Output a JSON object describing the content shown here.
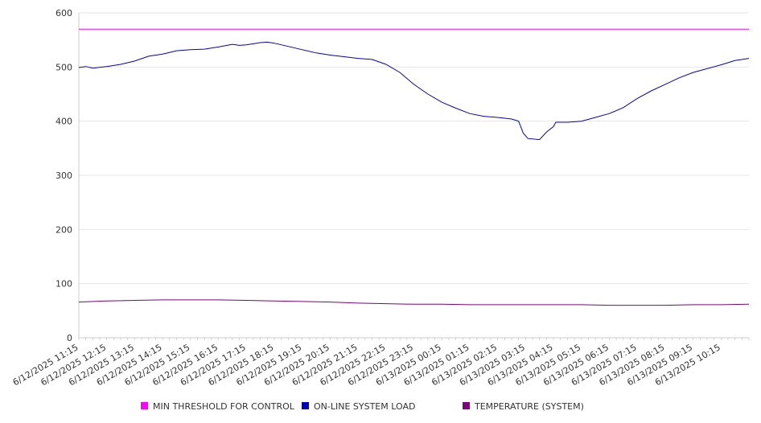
{
  "chart_data": {
    "type": "line",
    "title": "",
    "xlabel": "",
    "ylabel": "",
    "ylim": [
      0,
      600
    ],
    "yticks": [
      0,
      100,
      200,
      300,
      400,
      500,
      600
    ],
    "x_tick_labels": [
      "6/12/2025 11:15",
      "6/12/2025 12:15",
      "6/12/2025 13:15",
      "6/12/2025 14:15",
      "6/12/2025 15:15",
      "6/12/2025 16:15",
      "6/12/2025 17:15",
      "6/12/2025 18:15",
      "6/12/2025 19:15",
      "6/12/2025 20:15",
      "6/12/2025 21:15",
      "6/12/2025 22:15",
      "6/12/2025 23:15",
      "6/13/2025 00:15",
      "6/13/2025 01:15",
      "6/13/2025 02:15",
      "6/13/2025 03:15",
      "6/13/2025 04:15",
      "6/13/2025 05:15",
      "6/13/2025 06:15",
      "6/13/2025 07:15",
      "6/13/2025 08:15",
      "6/13/2025 09:15",
      "6/13/2025 10:15"
    ],
    "x_range": [
      "6/12/2025 11:15",
      "6/13/2025 11:15"
    ],
    "grid": true,
    "legend_position": "bottom",
    "series": [
      {
        "name": "MIN THRESHOLD FOR CONTROL",
        "color": "#ff00ff",
        "points": [
          [
            "6/12/2025 11:15",
            570
          ],
          [
            "6/13/2025 11:15",
            570
          ]
        ]
      },
      {
        "name": "ON-LINE SYSTEM LOAD",
        "color": "#0000cc",
        "points": [
          [
            "6/12/2025 11:15",
            499
          ],
          [
            "6/12/2025 11:30",
            501
          ],
          [
            "6/12/2025 11:45",
            498
          ],
          [
            "6/12/2025 12:15",
            501
          ],
          [
            "6/12/2025 12:45",
            505
          ],
          [
            "6/12/2025 13:15",
            511
          ],
          [
            "6/12/2025 13:45",
            520
          ],
          [
            "6/12/2025 14:15",
            524
          ],
          [
            "6/12/2025 14:45",
            530
          ],
          [
            "6/12/2025 15:15",
            532
          ],
          [
            "6/12/2025 15:45",
            533
          ],
          [
            "6/12/2025 16:15",
            537
          ],
          [
            "6/12/2025 16:45",
            542
          ],
          [
            "6/12/2025 17:00",
            540
          ],
          [
            "6/12/2025 17:15",
            541
          ],
          [
            "6/12/2025 17:45",
            545
          ],
          [
            "6/12/2025 18:00",
            546
          ],
          [
            "6/12/2025 18:15",
            544
          ],
          [
            "6/12/2025 18:45",
            538
          ],
          [
            "6/12/2025 19:15",
            532
          ],
          [
            "6/12/2025 19:45",
            526
          ],
          [
            "6/12/2025 20:15",
            522
          ],
          [
            "6/12/2025 20:45",
            519
          ],
          [
            "6/12/2025 21:15",
            516
          ],
          [
            "6/12/2025 21:45",
            514
          ],
          [
            "6/12/2025 22:15",
            505
          ],
          [
            "6/12/2025 22:45",
            490
          ],
          [
            "6/12/2025 23:15",
            468
          ],
          [
            "6/12/2025 23:45",
            450
          ],
          [
            "6/13/2025 00:15",
            435
          ],
          [
            "6/13/2025 00:45",
            424
          ],
          [
            "6/13/2025 01:15",
            414
          ],
          [
            "6/13/2025 01:45",
            409
          ],
          [
            "6/13/2025 02:15",
            407
          ],
          [
            "6/13/2025 02:45",
            404
          ],
          [
            "6/13/2025 03:00",
            400
          ],
          [
            "6/13/2025 03:10",
            378
          ],
          [
            "6/13/2025 03:20",
            368
          ],
          [
            "6/13/2025 03:45",
            366
          ],
          [
            "6/13/2025 04:00",
            380
          ],
          [
            "6/13/2025 04:15",
            390
          ],
          [
            "6/13/2025 04:20",
            398
          ],
          [
            "6/13/2025 04:45",
            398
          ],
          [
            "6/13/2025 05:15",
            400
          ],
          [
            "6/13/2025 05:45",
            407
          ],
          [
            "6/13/2025 06:15",
            414
          ],
          [
            "6/13/2025 06:45",
            425
          ],
          [
            "6/13/2025 07:15",
            442
          ],
          [
            "6/13/2025 07:45",
            456
          ],
          [
            "6/13/2025 08:15",
            468
          ],
          [
            "6/13/2025 08:45",
            480
          ],
          [
            "6/13/2025 09:15",
            490
          ],
          [
            "6/13/2025 09:45",
            497
          ],
          [
            "6/13/2025 10:15",
            504
          ],
          [
            "6/13/2025 10:45",
            512
          ],
          [
            "6/13/2025 11:15",
            516
          ]
        ]
      },
      {
        "name": "TEMPERATURE (SYSTEM)",
        "color": "#800080",
        "points": [
          [
            "6/12/2025 11:15",
            66
          ],
          [
            "6/12/2025 12:15",
            68
          ],
          [
            "6/12/2025 13:15",
            69
          ],
          [
            "6/12/2025 14:15",
            70
          ],
          [
            "6/12/2025 15:15",
            70
          ],
          [
            "6/12/2025 16:15",
            70
          ],
          [
            "6/12/2025 17:15",
            69
          ],
          [
            "6/12/2025 18:15",
            68
          ],
          [
            "6/12/2025 19:15",
            67
          ],
          [
            "6/12/2025 20:15",
            66
          ],
          [
            "6/12/2025 21:15",
            64
          ],
          [
            "6/12/2025 22:15",
            63
          ],
          [
            "6/12/2025 23:15",
            62
          ],
          [
            "6/13/2025 00:15",
            62
          ],
          [
            "6/13/2025 01:15",
            61
          ],
          [
            "6/13/2025 02:15",
            61
          ],
          [
            "6/13/2025 03:15",
            61
          ],
          [
            "6/13/2025 04:15",
            61
          ],
          [
            "6/13/2025 05:15",
            61
          ],
          [
            "6/13/2025 06:15",
            60
          ],
          [
            "6/13/2025 07:15",
            60
          ],
          [
            "6/13/2025 08:15",
            60
          ],
          [
            "6/13/2025 09:15",
            61
          ],
          [
            "6/13/2025 10:15",
            61
          ],
          [
            "6/13/2025 11:15",
            62
          ]
        ]
      }
    ]
  }
}
